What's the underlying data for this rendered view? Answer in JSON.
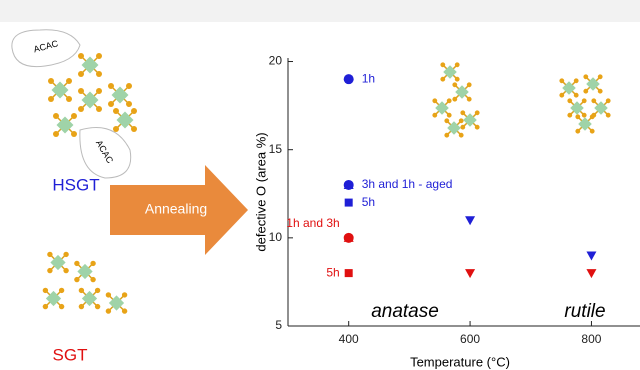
{
  "chart_data": {
    "type": "scatter",
    "xlabel": "Temperature (°C)",
    "ylabel": "defective O (area %)",
    "xlim": [
      300,
      880
    ],
    "ylim": [
      5,
      20.2
    ],
    "xticks": [
      400,
      600,
      800
    ],
    "yticks": [
      5,
      10,
      15,
      20
    ],
    "series": [
      {
        "marker": "circle",
        "color": "#1f1fd6",
        "x": [
          400,
          400
        ],
        "values": [
          19,
          13
        ],
        "labels": [
          "1h",
          null
        ],
        "label_side": "right"
      },
      {
        "marker": "triangle-up",
        "color": "#1f1fd6",
        "x": [
          400
        ],
        "values": [
          13
        ],
        "labels": [
          "3h and 1h - aged"
        ],
        "label_side": "right"
      },
      {
        "marker": "square",
        "color": "#1f1fd6",
        "x": [
          400
        ],
        "values": [
          12
        ],
        "labels": [
          "5h"
        ],
        "label_side": "right"
      },
      {
        "marker": "triangle-down",
        "color": "#1f1fd6",
        "x": [
          600,
          800
        ],
        "values": [
          11,
          9
        ],
        "labels": [
          null,
          null
        ],
        "label_side": "right"
      },
      {
        "marker": "circle",
        "color": "#e01010",
        "x": [
          400
        ],
        "values": [
          10
        ],
        "labels": [
          "1h and 3h"
        ],
        "label_side": "left"
      },
      {
        "marker": "triangle-up",
        "color": "#e01010",
        "x": [
          400
        ],
        "values": [
          10
        ],
        "labels": [
          null
        ],
        "label_side": "left"
      },
      {
        "marker": "square",
        "color": "#e01010",
        "x": [
          400
        ],
        "values": [
          8
        ],
        "labels": [
          "5h"
        ],
        "label_side": "left"
      },
      {
        "marker": "triangle-down",
        "color": "#e01010",
        "x": [
          600,
          800
        ],
        "values": [
          8,
          8
        ],
        "labels": [
          null,
          null
        ],
        "label_side": "left"
      }
    ],
    "annotations": [
      "anatase",
      "rutile"
    ]
  },
  "schematic": {
    "ligands": [
      "ACAC",
      "ACAC"
    ],
    "samples": [
      "HSGT",
      "SGT"
    ],
    "process": "Annealing"
  }
}
